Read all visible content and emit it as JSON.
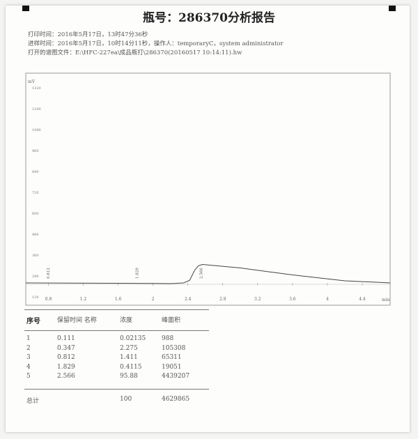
{
  "title": "瓶号：286370分析报告",
  "meta": [
    "打印时间：2016年5月17日，13时47分36秒",
    "进样时间：2016年5月17日，10时14分11秒，操作人：temporaryC，system administrator",
    "打开的谱图文件：E:\\HFC-227ea\\成品瓶打\\286370(20160517 10:14:11).hw"
  ],
  "chart_data": {
    "type": "line",
    "ylabel": "mV",
    "xlabel": "min",
    "xlim": [
      0.54,
      4.72
    ],
    "ylim": [
      90,
      1400
    ],
    "x_ticks": [
      0.8,
      1.2,
      1.6,
      2,
      2.4,
      2.8,
      3.2,
      3.6,
      4,
      4.4
    ],
    "x_tick_labels": [
      "0.8",
      "1.2",
      "1.6",
      "2",
      "2.4",
      "2.8",
      "3.2",
      "3.6",
      "4",
      "4.4"
    ],
    "y_ticks": [
      1320,
      1200,
      1080,
      960,
      840,
      720,
      600,
      480,
      360,
      240,
      120
    ],
    "y_tick_labels": [
      "1320",
      "1200",
      "1080",
      "960",
      "840",
      "720",
      "600",
      "480",
      "360",
      "240",
      "120"
    ],
    "grid": false,
    "series": [
      {
        "x": [
          0.54,
          1.0,
          1.6,
          2.0,
          2.2,
          2.35,
          2.42,
          2.48,
          2.52,
          2.566,
          3.0,
          3.6,
          4.2,
          4.6,
          4.72
        ],
        "y": [
          200,
          199,
          198,
          197,
          196,
          200,
          215,
          275,
          298,
          306,
          286,
          246,
          212,
          203,
          200
        ]
      }
    ],
    "peak_labels": [
      {
        "x": 0.812,
        "text": "0.812"
      },
      {
        "x": 1.829,
        "text": "1.829"
      },
      {
        "x": 2.566,
        "text": "2.566"
      }
    ],
    "color": "#444444"
  },
  "table": {
    "headers": [
      "序号",
      "保留时间 名称",
      "浓度",
      "峰面积"
    ],
    "rows": [
      [
        "1",
        "0.111",
        "0.02135",
        "988"
      ],
      [
        "2",
        "0.347",
        "2.275",
        "105308"
      ],
      [
        "3",
        "0.812",
        "1.411",
        "65311"
      ],
      [
        "4",
        "1.829",
        "0.4115",
        "19051"
      ],
      [
        "5",
        "2.566",
        "95.88",
        "4439207"
      ]
    ],
    "total": [
      "总计",
      "",
      "100",
      "4629865"
    ]
  }
}
